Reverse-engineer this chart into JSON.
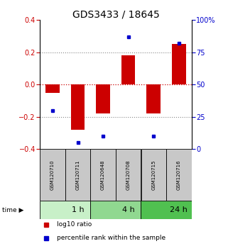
{
  "title": "GDS3433 / 18645",
  "samples": [
    "GSM120710",
    "GSM120711",
    "GSM120648",
    "GSM120708",
    "GSM120715",
    "GSM120716"
  ],
  "log10_ratio": [
    -0.05,
    -0.28,
    -0.18,
    0.18,
    -0.18,
    0.25
  ],
  "percentile_rank": [
    30,
    5,
    10,
    87,
    10,
    82
  ],
  "time_groups": [
    {
      "label": "1 h",
      "start": 0,
      "end": 2,
      "color": "#c8f0c8"
    },
    {
      "label": "4 h",
      "start": 2,
      "end": 4,
      "color": "#90d890"
    },
    {
      "label": "24 h",
      "start": 4,
      "end": 6,
      "color": "#50c050"
    }
  ],
  "bar_color": "#cc0000",
  "dot_color": "#0000cc",
  "left_ylim": [
    -0.4,
    0.4
  ],
  "right_ylim": [
    0,
    100
  ],
  "left_yticks": [
    -0.4,
    -0.2,
    0,
    0.2,
    0.4
  ],
  "right_yticks": [
    0,
    25,
    50,
    75,
    100
  ],
  "right_yticklabels": [
    "0",
    "25",
    "50",
    "75",
    "100%"
  ],
  "dotted_line_color": "#888888",
  "zero_line_color": "#cc0000",
  "sample_box_color": "#c8c8c8",
  "bar_width": 0.55,
  "legend_red_label": "log10 ratio",
  "legend_blue_label": "percentile rank within the sample",
  "title_fontsize": 10,
  "tick_fontsize": 7,
  "sample_fontsize": 5,
  "time_fontsize": 8,
  "legend_fontsize": 6.5
}
